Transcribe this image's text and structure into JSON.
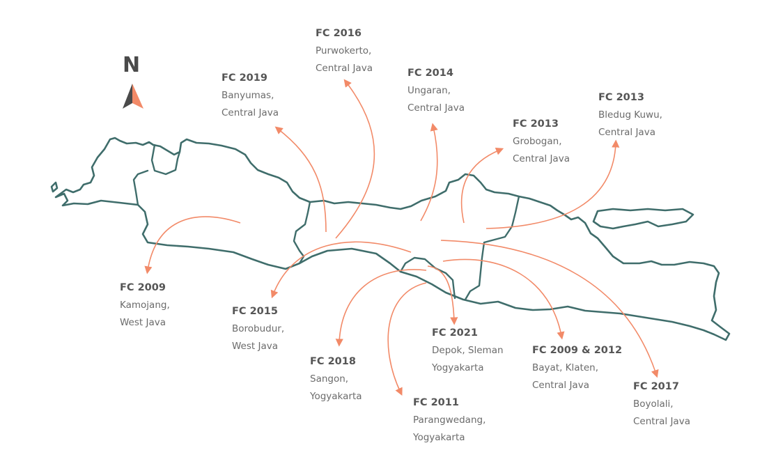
{
  "compass": {
    "letter": "N"
  },
  "colors": {
    "coast": "#3f6d6b",
    "arrow": "#f28a68",
    "text": "#6b6b6b",
    "compass_dark": "#4a4a4a",
    "compass_light": "#f28a68"
  },
  "sites": [
    {
      "id": "kamojang",
      "year": "FC 2009",
      "line1": "Kamojang,",
      "line2": "West Java"
    },
    {
      "id": "banyumas",
      "year": "FC 2019",
      "line1": "Banyumas,",
      "line2": "Central Java"
    },
    {
      "id": "purwokerto",
      "year": "FC 2016",
      "line1": "Purwokerto,",
      "line2": "Central Java"
    },
    {
      "id": "ungaran",
      "year": "FC 2014",
      "line1": "Ungaran,",
      "line2": "Central Java"
    },
    {
      "id": "grobogan",
      "year": "FC 2013",
      "line1": "Grobogan,",
      "line2": "Central Java"
    },
    {
      "id": "bledug-kuwu",
      "year": "FC 2013",
      "line1": "Bledug Kuwu,",
      "line2": "Central Java"
    },
    {
      "id": "borobudur",
      "year": "FC 2015",
      "line1": "Borobudur,",
      "line2": "West Java"
    },
    {
      "id": "sangon",
      "year": "FC 2018",
      "line1": "Sangon,",
      "line2": "Yogyakarta"
    },
    {
      "id": "parangwedang",
      "year": "FC 2011",
      "line1": "Parangwedang,",
      "line2": "Yogyakarta"
    },
    {
      "id": "depok",
      "year": "FC 2021",
      "line1": "Depok, Sleman",
      "line2": "Yogyakarta"
    },
    {
      "id": "bayat",
      "year": "FC 2009 & 2012",
      "line1": "Bayat, Klaten,",
      "line2": "Central Java"
    },
    {
      "id": "boyolali",
      "year": "FC 2017",
      "line1": "Boyolali,",
      "line2": "Central Java"
    }
  ]
}
